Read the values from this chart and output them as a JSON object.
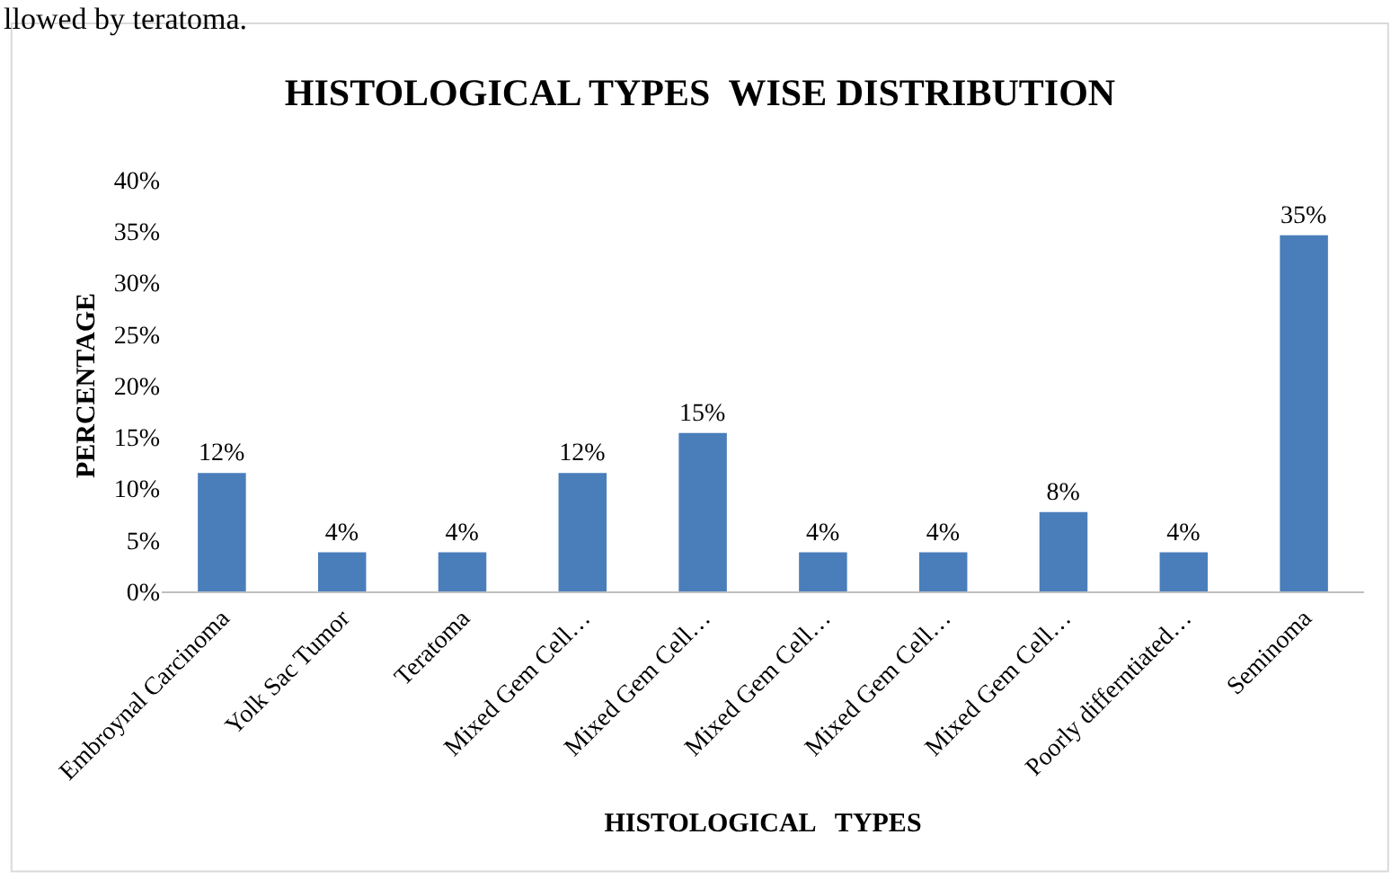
{
  "chart_data": {
    "type": "bar",
    "title": "HISTOLOGICAL TYPES  WISE DISTRIBUTION",
    "xlabel": "HISTOLOGICAL   TYPES",
    "ylabel": "PERCENTAGE",
    "annotations": [
      "llowed by teratoma."
    ],
    "categories": [
      "Embroynal Carcinoma",
      "Yolk Sac Tumor",
      "Teratoma",
      "Mixed Gem Cell…",
      "Mixed Gem Cell…",
      "Mixed Gem Cell…",
      "Mixed Gem Cell…",
      "Mixed Gem Cell…",
      "Poorly differntiated…",
      "Seminoma"
    ],
    "values": [
      11.5,
      3.8,
      3.8,
      11.5,
      15.4,
      3.8,
      3.8,
      7.7,
      3.8,
      34.6
    ],
    "value_labels": [
      "12%",
      "4%",
      "4%",
      "12%",
      "15%",
      "4%",
      "4%",
      "8%",
      "4%",
      "35%"
    ],
    "color": "#4a7ebb",
    "grid": false,
    "legend": false,
    "ylim": [
      0,
      40
    ],
    "yticks": [
      {
        "value": 0,
        "label": "0%"
      },
      {
        "value": 5,
        "label": "5%"
      },
      {
        "value": 10,
        "label": "10%"
      },
      {
        "value": 15,
        "label": "15%"
      },
      {
        "value": 20,
        "label": "20%"
      },
      {
        "value": 25,
        "label": "25%"
      },
      {
        "value": 30,
        "label": "30%"
      },
      {
        "value": 35,
        "label": "35%"
      },
      {
        "value": 40,
        "label": "40%"
      }
    ]
  }
}
